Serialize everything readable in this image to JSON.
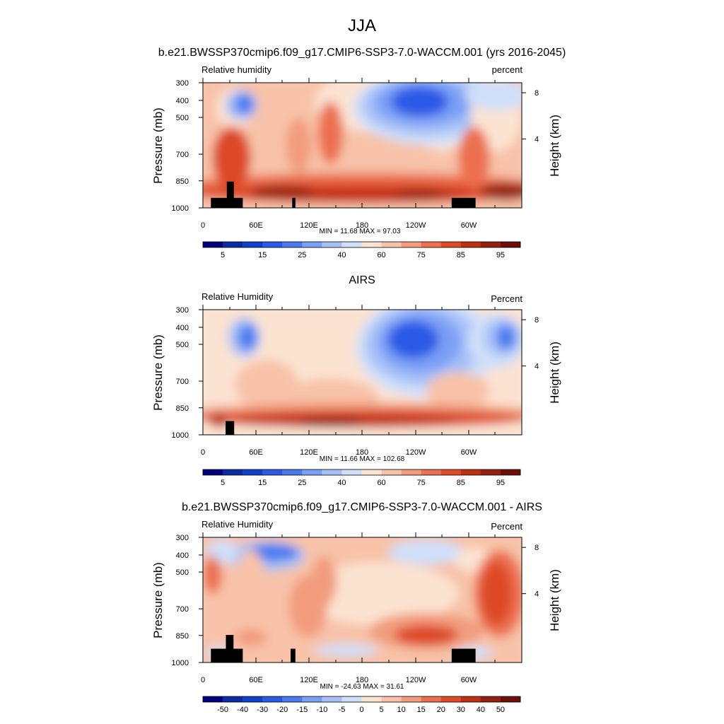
{
  "figure": {
    "title": "JJA"
  },
  "chart_data": [
    {
      "type": "heatmap",
      "title": "b.e21.BWSSP370cmip6.f09_g17.CMIP6-SSP3-7.0-WACCM.001 (yrs 2016-2045)",
      "left_string": "Relative humidity",
      "right_string": "percent",
      "ylabel": "Pressure (mb)",
      "ylabel_right": "Height (km)",
      "x_ticks": [
        "0",
        "60E",
        "120E",
        "180",
        "120W",
        "60W"
      ],
      "y_ticks": [
        "300",
        "400",
        "500",
        "700",
        "850",
        "1000"
      ],
      "y_ticks_right": [
        "8",
        "4"
      ],
      "stats": "MIN =  11.68  MAX =  97.03",
      "colorbar_labels": [
        "5",
        "15",
        "25",
        "40",
        "60",
        "75",
        "85",
        "95"
      ],
      "colorbar_levels": [
        5,
        10,
        15,
        20,
        25,
        30,
        40,
        50,
        60,
        65,
        75,
        80,
        85,
        90,
        95
      ],
      "min": 11.68,
      "max": 97.03
    },
    {
      "type": "heatmap",
      "title": "AIRS",
      "left_string": "Relative Humidity",
      "right_string": "Percent",
      "ylabel": "Pressure (mb)",
      "ylabel_right": "Height (km)",
      "x_ticks": [
        "0",
        "60E",
        "120E",
        "180",
        "120W",
        "60W"
      ],
      "y_ticks": [
        "300",
        "400",
        "500",
        "700",
        "850",
        "1000"
      ],
      "y_ticks_right": [
        "8",
        "4"
      ],
      "stats": "MIN =  11.66  MAX = 102.68",
      "colorbar_labels": [
        "5",
        "15",
        "25",
        "40",
        "60",
        "75",
        "85",
        "95"
      ],
      "colorbar_levels": [
        5,
        10,
        15,
        20,
        25,
        30,
        40,
        50,
        60,
        65,
        75,
        80,
        85,
        90,
        95
      ],
      "min": 11.66,
      "max": 102.68
    },
    {
      "type": "heatmap",
      "title": "b.e21.BWSSP370cmip6.f09_g17.CMIP6-SSP3-7.0-WACCM.001 - AIRS",
      "left_string": "Relative Humidity",
      "right_string": "Percent",
      "ylabel": "Pressure (mb)",
      "ylabel_right": "Height (km)",
      "x_ticks": [
        "0",
        "60E",
        "120E",
        "180",
        "120W",
        "60W"
      ],
      "y_ticks": [
        "300",
        "400",
        "500",
        "700",
        "850",
        "1000"
      ],
      "y_ticks_right": [
        "8",
        "4"
      ],
      "stats": "MIN = -24.63  MAX =  31.61",
      "colorbar_labels": [
        "-50",
        "-40",
        "-30",
        "-20",
        "-15",
        "-10",
        "-5",
        "0",
        "5",
        "10",
        "15",
        "20",
        "30",
        "40",
        "50"
      ],
      "colorbar_levels": [
        -50,
        -40,
        -30,
        -20,
        -15,
        -10,
        -5,
        0,
        5,
        10,
        15,
        20,
        30,
        40,
        50
      ],
      "min": -24.63,
      "max": 31.61
    }
  ],
  "colors": {
    "palette": [
      "#00007f",
      "#0a2aa6",
      "#1140cc",
      "#2a5ae6",
      "#4a7af0",
      "#7a9ff5",
      "#a6c0f7",
      "#cfdff9",
      "#fbe3d2",
      "#f7c2a8",
      "#f29c7d",
      "#ec7050",
      "#dd4a25",
      "#bf2f12",
      "#962010",
      "#6d0e0a"
    ],
    "topography": "#000000"
  }
}
